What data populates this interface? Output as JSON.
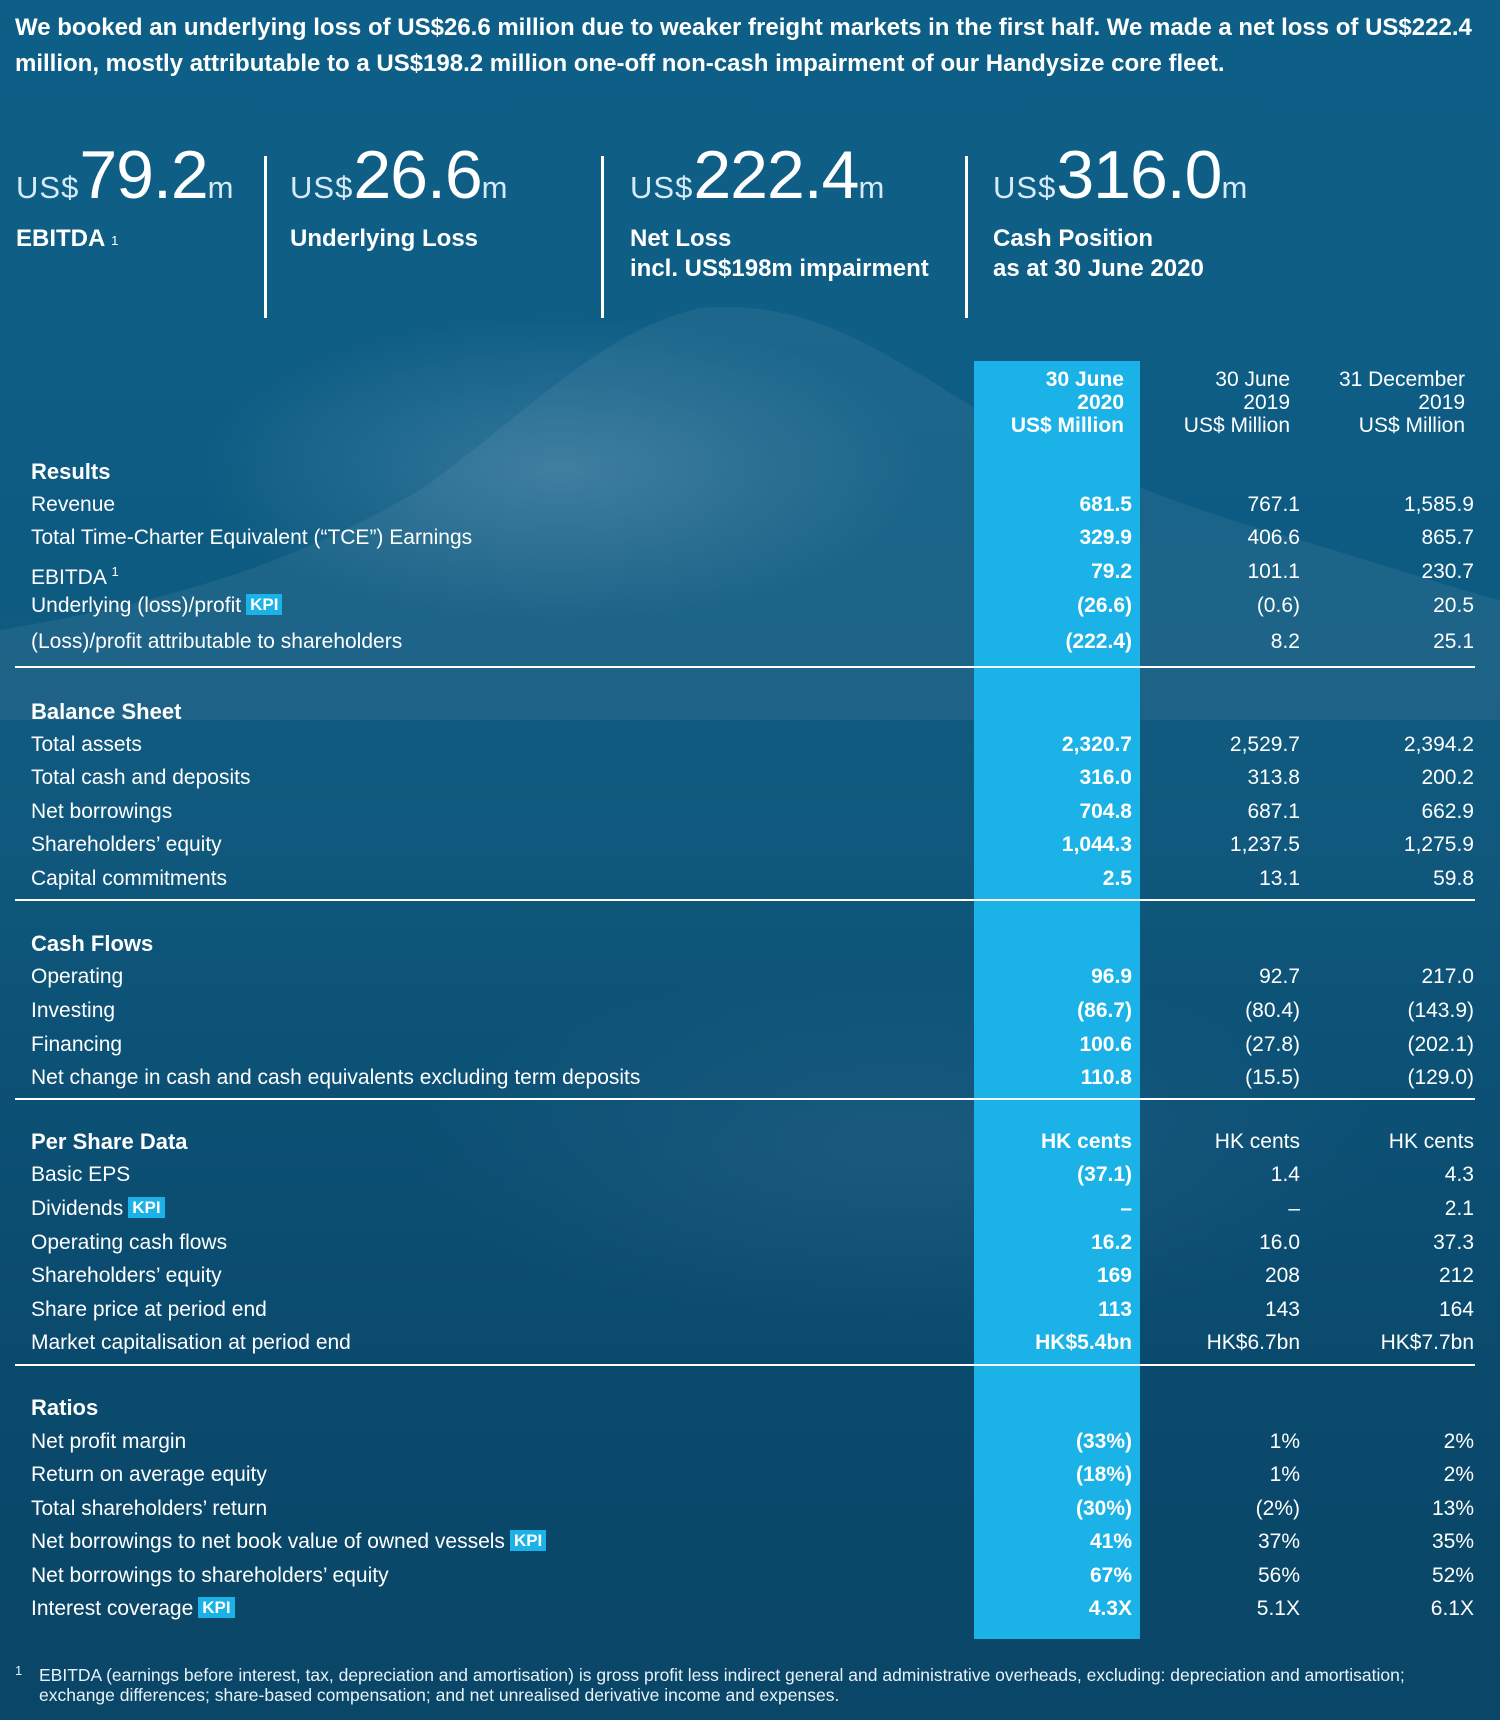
{
  "intro": "We booked an underlying loss of US$26.6 million due to weaker freight markets in the first half. We made a net loss of US$222.4 million, mostly attributable to a US$198.2 million one-off non-cash impairment of our Handysize core fleet.",
  "kpis": [
    {
      "prefix": "US$",
      "value": "79.2",
      "suffix": "m",
      "label": "EBITDA",
      "footnote_mark": "1",
      "sublabel": ""
    },
    {
      "prefix": "US$",
      "value": "26.6",
      "suffix": "m",
      "label": "Underlying Loss",
      "footnote_mark": "",
      "sublabel": ""
    },
    {
      "prefix": "US$",
      "value": "222.4",
      "suffix": "m",
      "label": "Net Loss",
      "footnote_mark": "",
      "sublabel": "incl. US$198m impairment"
    },
    {
      "prefix": "US$",
      "value": "316.0",
      "suffix": "m",
      "label": "Cash Position",
      "footnote_mark": "",
      "sublabel": "as at 30 June 2020"
    }
  ],
  "columns": [
    {
      "line1": "30 June",
      "line2": "2020",
      "line3": "US$ Million"
    },
    {
      "line1": "30 June",
      "line2": "2019",
      "line3": "US$ Million"
    },
    {
      "line1": "31 December",
      "line2": "2019",
      "line3": "US$ Million"
    }
  ],
  "kpi_badge": "KPI",
  "sections": {
    "results": {
      "title": "Results",
      "rows": [
        {
          "label": "Revenue",
          "v1": "681.5",
          "v2": "767.1",
          "v3": "1,585.9"
        },
        {
          "label": "Total Time-Charter Equivalent (“TCE”) Earnings",
          "v1": "329.9",
          "v2": "406.6",
          "v3": "865.7"
        },
        {
          "label": "EBITDA",
          "mark": "1",
          "v1": "79.2",
          "v2": "101.1",
          "v3": "230.7"
        },
        {
          "label": "Underlying (loss)/profit",
          "v1": "(26.6)",
          "v2": "(0.6)",
          "v3": "20.5"
        },
        {
          "label": "(Loss)/profit attributable to shareholders",
          "v1": "(222.4)",
          "v2": "8.2",
          "v3": "25.1"
        }
      ]
    },
    "balance": {
      "title": "Balance Sheet",
      "rows": [
        {
          "label": "Total assets",
          "v1": "2,320.7",
          "v2": "2,529.7",
          "v3": "2,394.2"
        },
        {
          "label": "Total cash and deposits",
          "v1": "316.0",
          "v2": "313.8",
          "v3": "200.2"
        },
        {
          "label": "Net borrowings",
          "v1": "704.8",
          "v2": "687.1",
          "v3": "662.9"
        },
        {
          "label": "Shareholders’ equity",
          "v1": "1,044.3",
          "v2": "1,237.5",
          "v3": "1,275.9"
        },
        {
          "label": "Capital commitments",
          "v1": "2.5",
          "v2": "13.1",
          "v3": "59.8"
        }
      ]
    },
    "cashflows": {
      "title": "Cash Flows",
      "rows": [
        {
          "label": "Operating",
          "v1": "96.9",
          "v2": "92.7",
          "v3": "217.0"
        },
        {
          "label": "Investing",
          "v1": "(86.7)",
          "v2": "(80.4)",
          "v3": "(143.9)"
        },
        {
          "label": "Financing",
          "v1": "100.6",
          "v2": "(27.8)",
          "v3": "(202.1)"
        },
        {
          "label": "Net change in cash and cash equivalents excluding term deposits",
          "v1": "110.8",
          "v2": "(15.5)",
          "v3": "(129.0)"
        }
      ]
    },
    "pershare": {
      "title": "Per Share Data",
      "units": {
        "v1": "HK cents",
        "v2": "HK cents",
        "v3": "HK cents"
      },
      "rows": [
        {
          "label": "Basic EPS",
          "v1": "(37.1)",
          "v2": "1.4",
          "v3": "4.3"
        },
        {
          "label": "Dividends",
          "v1": "–",
          "v2": "–",
          "v3": "2.1"
        },
        {
          "label": "Operating cash flows",
          "v1": "16.2",
          "v2": "16.0",
          "v3": "37.3"
        },
        {
          "label": "Shareholders’ equity",
          "v1": "169",
          "v2": "208",
          "v3": "212"
        },
        {
          "label": "Share price at period end",
          "v1": "113",
          "v2": "143",
          "v3": "164"
        },
        {
          "label": "Market capitalisation at period end",
          "v1": "HK$5.4bn",
          "v2": "HK$6.7bn",
          "v3": "HK$7.7bn"
        }
      ]
    },
    "ratios": {
      "title": "Ratios",
      "rows": [
        {
          "label": "Net profit margin",
          "v1": "(33%)",
          "v2": "1%",
          "v3": "2%"
        },
        {
          "label": "Return on average equity",
          "v1": "(18%)",
          "v2": "1%",
          "v3": "2%"
        },
        {
          "label": "Total shareholders’ return",
          "v1": "(30%)",
          "v2": "(2%)",
          "v3": "13%"
        },
        {
          "label": "Net borrowings to net book value of owned vessels",
          "v1": "41%",
          "v2": "37%",
          "v3": "35%"
        },
        {
          "label": "Net borrowings to shareholders’ equity",
          "v1": "67%",
          "v2": "56%",
          "v3": "52%"
        },
        {
          "label": "Interest coverage",
          "v1": "4.3X",
          "v2": "5.1X",
          "v3": "6.1X"
        }
      ]
    }
  },
  "footnote": {
    "mark": "1",
    "text": "EBITDA (earnings before interest, tax, depreciation and amortisation) is gross profit less indirect general and administrative overheads, excluding: depreciation and amortisation; exchange differences; share-based compensation; and net unrealised derivative income and expenses."
  },
  "colors": {
    "highlight": "#1bb2e8",
    "background": "#0d5b82",
    "text": "#ffffff"
  }
}
